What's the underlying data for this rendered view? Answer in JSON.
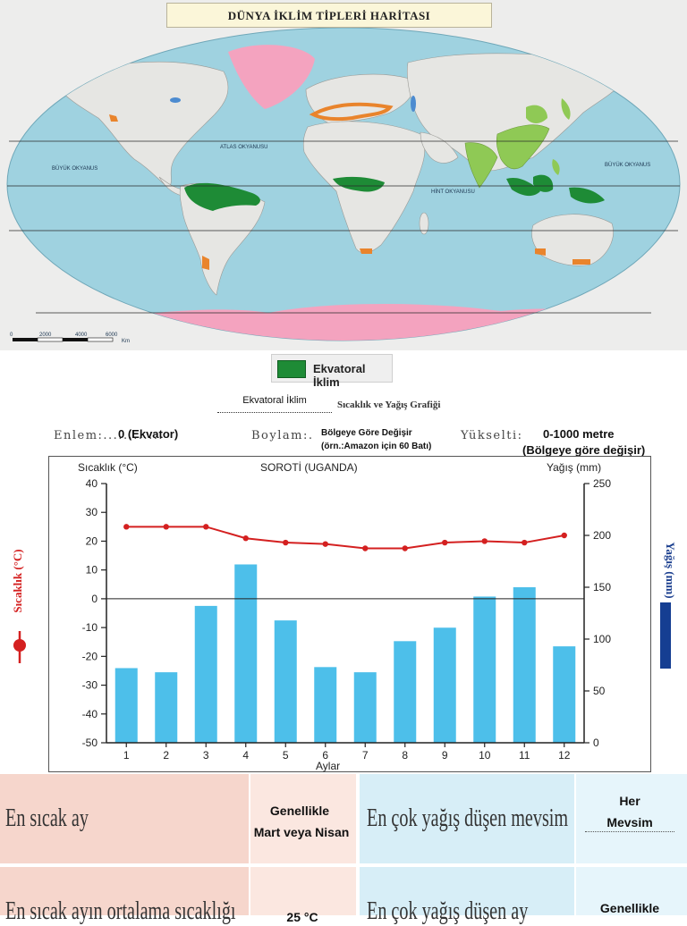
{
  "map": {
    "title": "DÜNYA İKLİM TİPLERİ HARİTASI",
    "ocean_labels": {
      "atlas": "ATLAS OKYANUSU",
      "buyuk_west": "BÜYÜK OKYANUS",
      "buyuk_east": "BÜYÜK OKYANUS",
      "hint": "HİNT OKYANUSU"
    },
    "scale_ticks": [
      "0",
      "2000",
      "4000",
      "6000"
    ],
    "scale_unit": "Km",
    "colors": {
      "ocean": "#9fd2e0",
      "land": "#e6e6e3",
      "equatorial": "#1e8b36",
      "monsoon": "#8fc955",
      "mediterranean": "#e9842c",
      "ice": "#f4a3bf"
    }
  },
  "legend": {
    "label": "Ekvatoral İklim",
    "color": "#1e8b36"
  },
  "graph_heading": {
    "climate": "Ekvatoral İklim",
    "suffix": "Sıcaklık ve Yağış Grafiği"
  },
  "info": {
    "enlem_label": "Enlem:............",
    "enlem_value": "0 (Ekvator)",
    "boylam_label": "Boylam:.",
    "boylam_value_line1": "Bölgeye Göre Değişir",
    "boylam_value_line2": "(örn.:Amazon için 60 Batı)",
    "yukselti_label": "Yükselti:",
    "yukselti_value_line1": "0-1000 metre",
    "yukselti_value_line2": "(Bölgeye göre değişir)"
  },
  "chart_data": {
    "type": "bar+line",
    "title": "SOROTİ (UGANDA)",
    "xlabel": "Aylar",
    "ylabel_left": "Sıcaklık (°C)",
    "ylabel_right": "Yağış (mm)",
    "side_label_left": "Sıcaklık (°C)",
    "side_label_right": "Yağış (mm)",
    "categories": [
      "1",
      "2",
      "3",
      "4",
      "5",
      "6",
      "7",
      "8",
      "9",
      "10",
      "11",
      "12"
    ],
    "temp_ylim": [
      -50,
      40
    ],
    "temp_ticks": [
      "40",
      "30",
      "20",
      "10",
      "0",
      "-10",
      "-20",
      "-30",
      "-40",
      "-50"
    ],
    "rain_ylim": [
      0,
      250
    ],
    "rain_ticks": [
      "250",
      "200",
      "150",
      "100",
      "50",
      "0"
    ],
    "series": [
      {
        "name": "Sıcaklık (°C)",
        "kind": "line",
        "axis": "left",
        "color": "#d42020",
        "values": [
          25,
          25,
          25,
          21,
          19.5,
          19,
          17.5,
          17.5,
          19.5,
          20,
          19.5,
          22
        ]
      },
      {
        "name": "Yağış (mm)",
        "kind": "bar",
        "axis": "right",
        "color": "#4dbfea",
        "values": [
          72,
          68,
          132,
          172,
          118,
          73,
          68,
          98,
          111,
          141,
          150,
          93
        ]
      }
    ],
    "grid": false,
    "zero_line": true
  },
  "table": {
    "row1": {
      "q1": "En sıcak ay",
      "a1_line1": "Genellikle",
      "a1_line2": "Mart veya Nisan",
      "q2": "En çok yağış düşen mevsim",
      "a2_line1": "Her",
      "a2_line2": "Mevsim"
    },
    "row2": {
      "q1": "En sıcak ayın ortalama sıcaklığı",
      "a1_line1": "25 °C",
      "q2": "En çok yağış düşen ay",
      "a2_line1": "Genellikle"
    }
  }
}
